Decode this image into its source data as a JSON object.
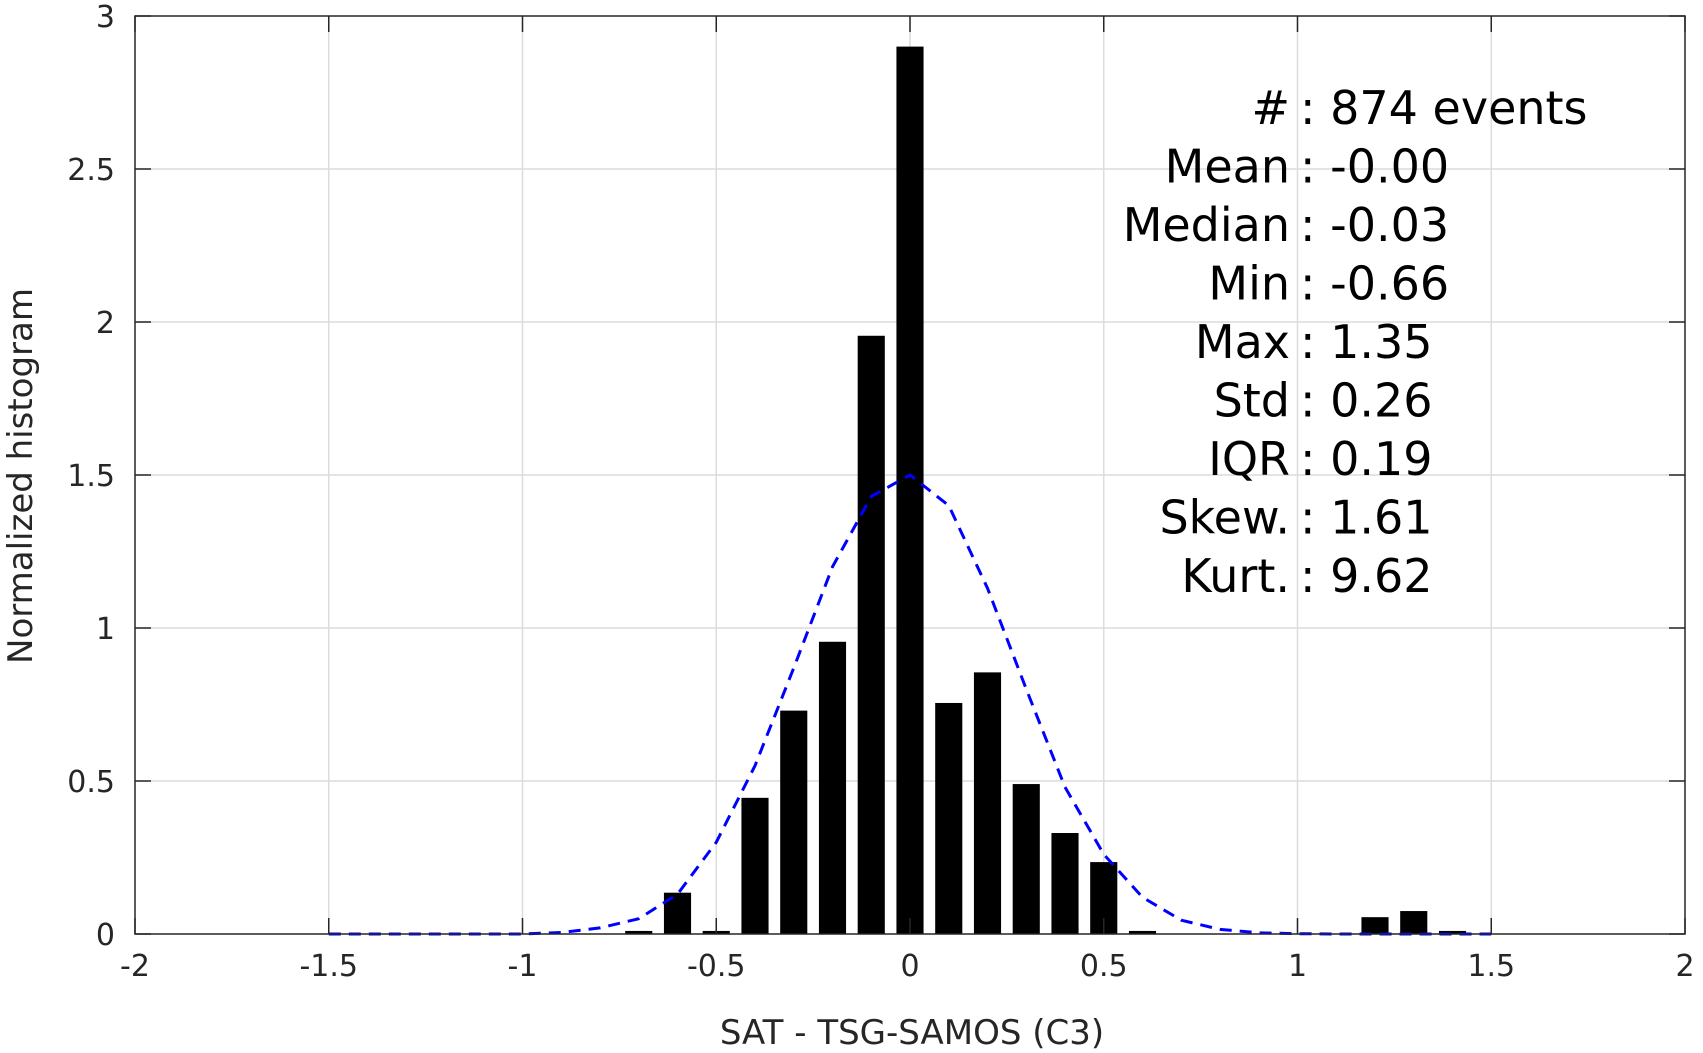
{
  "chart_data": {
    "type": "bar",
    "xlabel": "SAT - TSG-SAMOS (C3)",
    "ylabel": "Normalized histogram",
    "xlim": [
      -2,
      2
    ],
    "ylim": [
      0,
      3
    ],
    "xticks": [
      -2,
      -1.5,
      -1,
      -0.5,
      0,
      0.5,
      1,
      1.5,
      2
    ],
    "xtick_labels": [
      "-2",
      "-1.5",
      "-1",
      "-0.5",
      "0",
      "0.5",
      "1",
      "1.5",
      "2"
    ],
    "yticks": [
      0,
      0.5,
      1,
      1.5,
      2,
      2.5,
      3
    ],
    "ytick_labels": [
      "0",
      "0.5",
      "1",
      "1.5",
      "2",
      "2.5",
      "3"
    ],
    "grid": true,
    "bar_width": 0.07,
    "bars": [
      {
        "x": -0.7,
        "y": 0.01
      },
      {
        "x": -0.6,
        "y": 0.135
      },
      {
        "x": -0.5,
        "y": 0.01
      },
      {
        "x": -0.4,
        "y": 0.445
      },
      {
        "x": -0.3,
        "y": 0.73
      },
      {
        "x": -0.2,
        "y": 0.955
      },
      {
        "x": -0.1,
        "y": 1.955
      },
      {
        "x": 0.0,
        "y": 2.9
      },
      {
        "x": 0.1,
        "y": 0.755
      },
      {
        "x": 0.2,
        "y": 0.855
      },
      {
        "x": 0.3,
        "y": 0.49
      },
      {
        "x": 0.4,
        "y": 0.33
      },
      {
        "x": 0.5,
        "y": 0.235
      },
      {
        "x": 0.6,
        "y": 0.01
      },
      {
        "x": 1.2,
        "y": 0.055
      },
      {
        "x": 1.3,
        "y": 0.075
      },
      {
        "x": 1.4,
        "y": 0.01
      }
    ],
    "fit_curve": {
      "style": "dashed",
      "color": "#0000ff",
      "x": [
        -1.5,
        -1.4,
        -1.3,
        -1.2,
        -1.1,
        -1.0,
        -0.9,
        -0.8,
        -0.7,
        -0.6,
        -0.5,
        -0.4,
        -0.3,
        -0.2,
        -0.1,
        0.0,
        0.1,
        0.2,
        0.3,
        0.4,
        0.5,
        0.6,
        0.7,
        0.8,
        0.9,
        1.0,
        1.1,
        1.2,
        1.3,
        1.4,
        1.5
      ],
      "y": [
        0,
        0,
        0,
        0,
        0,
        0,
        0.005,
        0.02,
        0.05,
        0.13,
        0.3,
        0.55,
        0.87,
        1.2,
        1.43,
        1.5,
        1.4,
        1.13,
        0.8,
        0.48,
        0.26,
        0.12,
        0.045,
        0.015,
        0.004,
        0.001,
        0,
        0,
        0,
        0,
        0
      ]
    },
    "bar_color": "#000000"
  },
  "stats": [
    {
      "label": "#  ",
      "value": "874 events"
    },
    {
      "label": "Mean",
      "value": "-0.00"
    },
    {
      "label": "Median",
      "value": "-0.03"
    },
    {
      "label": "Min",
      "value": "-0.66"
    },
    {
      "label": "Max",
      "value": "1.35"
    },
    {
      "label": "Std",
      "value": "0.26"
    },
    {
      "label": "IQR",
      "value": "0.19"
    },
    {
      "label": "Skew.",
      "value": "1.61"
    },
    {
      "label": "Kurt.",
      "value": "9.62"
    }
  ]
}
